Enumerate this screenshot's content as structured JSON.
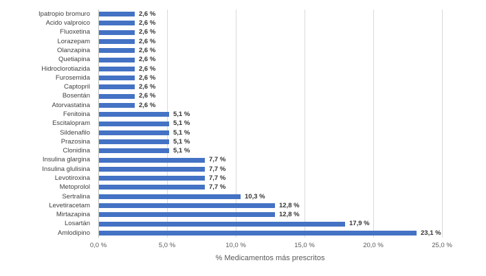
{
  "chart_data": {
    "type": "bar",
    "orientation": "horizontal",
    "title": "",
    "xlabel": "% Medicamentos más prescritos",
    "ylabel": "",
    "xlim": [
      0,
      25
    ],
    "grid": "vertical-only",
    "legend": "none",
    "categories": [
      "Ipatropio bromuro",
      "Acido valproico",
      "Fluoxetina",
      "Lorazepam",
      "Olanzapina",
      "Quetiapina",
      "Hidroclorotiazida",
      "Furosemida",
      "Captopril",
      "Bosentán",
      "Atorvastatina",
      "Fenitoina",
      "Escitalopram",
      "Sildenafilo",
      "Prazosina",
      "Clonidina",
      "Insulina glargina",
      "Insulina glulisina",
      "Levotiroxina",
      "Metoprolol",
      "Sertralina",
      "Levetiracetam",
      "Mirtazapina",
      "Losartán",
      "Amlodipino"
    ],
    "values": [
      2.6,
      2.6,
      2.6,
      2.6,
      2.6,
      2.6,
      2.6,
      2.6,
      2.6,
      2.6,
      2.6,
      5.1,
      5.1,
      5.1,
      5.1,
      5.1,
      7.7,
      7.7,
      7.7,
      7.7,
      10.3,
      12.8,
      12.8,
      17.9,
      23.1
    ],
    "data_labels": [
      "2,6 %",
      "2,6 %",
      "2,6 %",
      "2,6 %",
      "2,6 %",
      "2,6 %",
      "2,6 %",
      "2,6 %",
      "2,6 %",
      "2,6 %",
      "2,6 %",
      "5,1 %",
      "5,1 %",
      "5,1 %",
      "5,1 %",
      "5,1 %",
      "7,7 %",
      "7,7 %",
      "7,7 %",
      "7,7 %",
      "10,3 %",
      "12,8 %",
      "12,8 %",
      "17,9 %",
      "23,1 %"
    ],
    "x_tick_values": [
      0,
      5,
      10,
      15,
      20,
      25
    ],
    "x_tick_labels": [
      "0,0 %",
      "5,0 %",
      "10,0 %",
      "15,0 %",
      "20,0 %",
      "25,0 %"
    ],
    "colors": {
      "bar": "#4472C4",
      "gridline": "#d9d9d9",
      "axis_line": "#bfbfbf",
      "category_label": "#3f3f3f",
      "data_label": "#333333",
      "tick_label": "#595959",
      "axis_title": "#595959"
    }
  }
}
